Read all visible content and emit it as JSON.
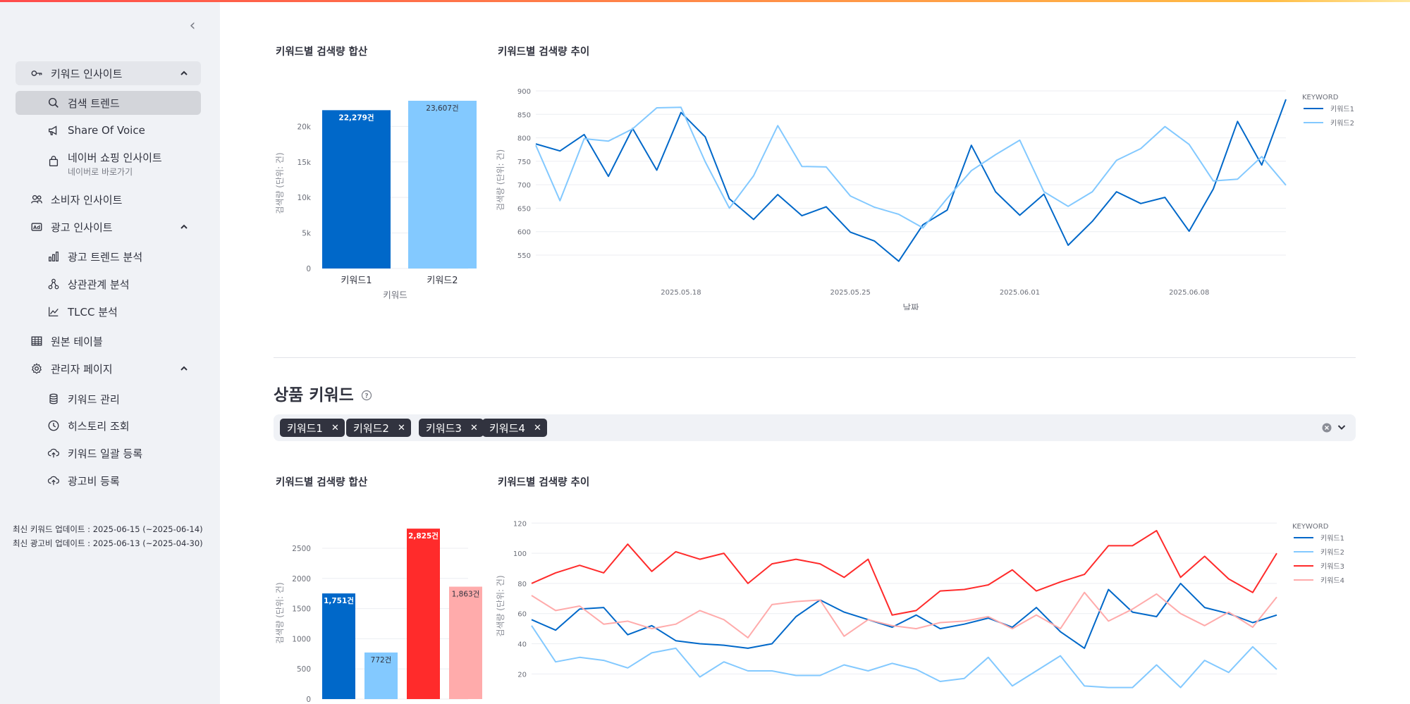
{
  "sidebar": {
    "collapse_icon": "chevron-left",
    "groups": [
      {
        "label": "키워드 인사이트",
        "icon": "key-icon",
        "open": true,
        "items": [
          {
            "label": "검색 트렌드",
            "icon": "search-icon",
            "active": true
          },
          {
            "label": "Share Of Voice",
            "icon": "megaphone-icon"
          },
          {
            "label": "네이버 쇼핑 인사이트",
            "sub": "네이버로 바로가기",
            "icon": "shopping-bag-icon"
          }
        ]
      },
      {
        "label": "소비자 인사이트",
        "icon": "users-icon"
      },
      {
        "label": "광고 인사이트",
        "icon": "ad-icon",
        "items": [
          {
            "label": "광고 트렌드 분석",
            "icon": "bar-chart-icon"
          },
          {
            "label": "상관관계 분석",
            "icon": "network-icon"
          },
          {
            "label": "TLCC 분석",
            "icon": "line-chart-icon"
          }
        ]
      },
      {
        "label": "원본 테이블",
        "icon": "table-icon"
      },
      {
        "label": "관리자 페이지",
        "icon": "gear-icon",
        "items": [
          {
            "label": "키워드 관리",
            "icon": "database-icon"
          },
          {
            "label": "히스토리 조회",
            "icon": "clock-icon"
          },
          {
            "label": "키워드 일괄 등록",
            "icon": "cloud-upload-icon"
          },
          {
            "label": "광고비 등록",
            "icon": "cloud-upload-icon"
          }
        ]
      }
    ],
    "footer": {
      "keyword_update": "최신 키워드 업데이트 : 2025-06-15 (~2025-06-14)",
      "ad_update": "최신 광고비 업데이트 : 2025-06-13 (~2025-04-30)"
    }
  },
  "section1": {
    "bar_title": "키워드별 검색량 합산",
    "line_title": "키워드별 검색량 추이"
  },
  "section2": {
    "heading": "상품 키워드",
    "tags": [
      "키워드1",
      "키워드2",
      "키워드3",
      "키워드4"
    ],
    "bar_title": "키워드별 검색량 합산",
    "line_title": "키워드별 검색량 추이"
  },
  "colors": {
    "k1": "#0068c9",
    "k2": "#83c9ff",
    "k3": "#ff2b2b",
    "k4": "#ffabab"
  },
  "chart_data": [
    {
      "type": "bar",
      "xlabel": "키워드",
      "ylabel": "검색량 (단위: 건)",
      "categories": [
        "키워드1",
        "키워드2"
      ],
      "values": [
        22279,
        23607
      ],
      "data_labels": [
        "22,279건",
        "23,607건"
      ],
      "ylim": [
        0,
        24000
      ],
      "yticks": [
        0,
        5000,
        10000,
        15000,
        20000
      ],
      "ytick_labels": [
        "0",
        "5k",
        "10k",
        "15k",
        "20k"
      ]
    },
    {
      "type": "line",
      "xlabel": "날짜",
      "ylabel": "검색량 (단위: 건)",
      "legend_title": "KEYWORD",
      "legend_position": "right",
      "x_start": "2025-05-12",
      "x_ticks": [
        "2025.05.18",
        "2025.05.25",
        "2025.06.01",
        "2025.06.08"
      ],
      "ylim": [
        520,
        900
      ],
      "yticks": [
        550,
        600,
        650,
        700,
        750,
        800,
        850,
        900
      ],
      "series": [
        {
          "name": "키워드1",
          "values": [
            787,
            772,
            807,
            718,
            820,
            731,
            854,
            802,
            670,
            626,
            679,
            634,
            653,
            599,
            580,
            537,
            615,
            646,
            784,
            685,
            635,
            680,
            571,
            622,
            685,
            660,
            673,
            601,
            691,
            835,
            742,
            882
          ]
        },
        {
          "name": "키워드2",
          "values": [
            784,
            666,
            798,
            793,
            819,
            864,
            865,
            749,
            650,
            719,
            826,
            739,
            738,
            676,
            652,
            637,
            608,
            671,
            730,
            764,
            795,
            685,
            654,
            685,
            752,
            777,
            824,
            786,
            708,
            712,
            760,
            699
          ]
        }
      ]
    },
    {
      "type": "bar",
      "xlabel": "",
      "ylabel": "검색량 (단위: 건)",
      "categories": [
        "키워드1",
        "키워드2",
        "키워드3",
        "키워드4"
      ],
      "values": [
        1751,
        772,
        2825,
        1863
      ],
      "data_labels": [
        "1,751건",
        "772건",
        "2,825건",
        "1,863건"
      ],
      "ylim": [
        0,
        2850
      ],
      "yticks": [
        0,
        500,
        1000,
        1500,
        2000,
        2500
      ]
    },
    {
      "type": "line",
      "xlabel": "",
      "ylabel": "검색량 (단위: 건)",
      "legend_title": "KEYWORD",
      "legend_position": "right",
      "ylim": [
        8,
        122
      ],
      "yticks": [
        20,
        40,
        60,
        80,
        100,
        120
      ],
      "series": [
        {
          "name": "키워드1",
          "values": [
            56,
            49,
            63,
            64,
            46,
            52,
            42,
            40,
            39,
            37,
            40,
            58,
            69,
            61,
            56,
            51,
            59,
            50,
            53,
            57,
            51,
            64,
            48,
            37,
            76,
            61,
            58,
            80,
            64,
            60,
            54,
            59
          ]
        },
        {
          "name": "키워드2",
          "values": [
            52,
            28,
            31,
            29,
            24,
            34,
            37,
            18,
            28,
            22,
            22,
            19,
            19,
            26,
            22,
            27,
            23,
            15,
            17,
            31,
            12,
            22,
            32,
            12,
            11,
            11,
            26,
            11,
            29,
            21,
            38,
            23
          ]
        },
        {
          "name": "키워드3",
          "values": [
            80,
            87,
            92,
            87,
            106,
            88,
            101,
            96,
            100,
            80,
            93,
            96,
            93,
            84,
            96,
            59,
            62,
            75,
            76,
            79,
            89,
            75,
            81,
            86,
            105,
            105,
            115,
            84,
            98,
            83,
            74,
            100
          ]
        },
        {
          "name": "키워드4",
          "values": [
            72,
            62,
            65,
            53,
            55,
            50,
            53,
            62,
            56,
            44,
            66,
            68,
            69,
            45,
            56,
            52,
            50,
            54,
            55,
            58,
            50,
            59,
            50,
            74,
            55,
            63,
            73,
            60,
            52,
            61,
            51,
            71
          ]
        }
      ]
    }
  ]
}
